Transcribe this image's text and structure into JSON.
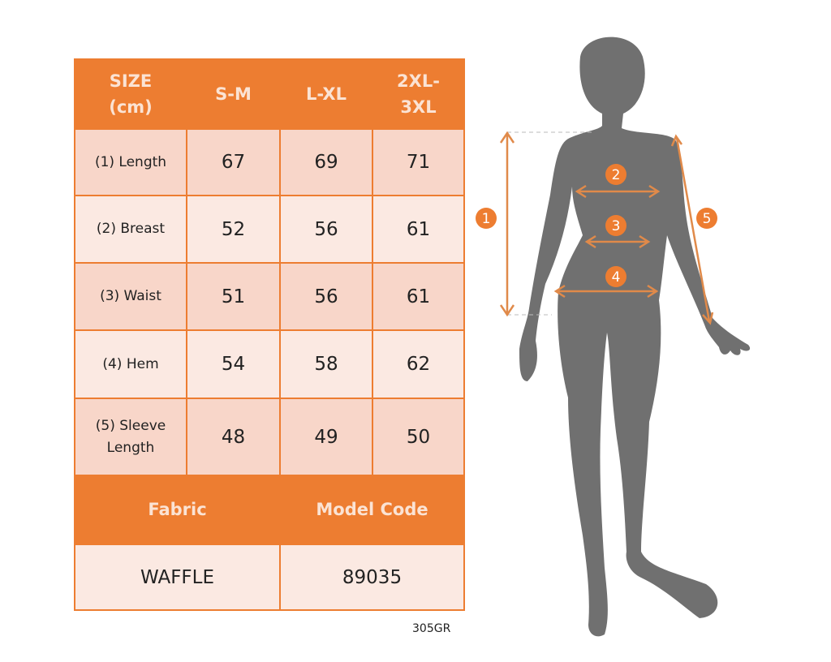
{
  "size_table": {
    "headers": [
      "SIZE\n(cm)",
      "S-M",
      "L-XL",
      "2XL-\n3XL"
    ],
    "rows": [
      {
        "label": "(1) Length",
        "values": [
          "67",
          "69",
          "71"
        ]
      },
      {
        "label": "(2) Breast",
        "values": [
          "52",
          "56",
          "61"
        ]
      },
      {
        "label": "(3) Waist",
        "values": [
          "51",
          "56",
          "61"
        ]
      },
      {
        "label": "(4) Hem",
        "values": [
          "54",
          "58",
          "62"
        ]
      },
      {
        "label": "(5) Sleeve\nLength",
        "values": [
          "48",
          "49",
          "50"
        ]
      }
    ]
  },
  "info_table": {
    "fabric_label": "Fabric",
    "model_code_label": "Model Code",
    "fabric_value": "WAFFLE",
    "model_code_value": "89035"
  },
  "product_code": "305GR",
  "figure": {
    "markers": [
      "1",
      "2",
      "3",
      "4",
      "5"
    ]
  },
  "colors": {
    "accent": "#ed7d31",
    "row_dark": "#f8d6c9",
    "row_light": "#fbe9e2",
    "silhouette": "#707070"
  }
}
